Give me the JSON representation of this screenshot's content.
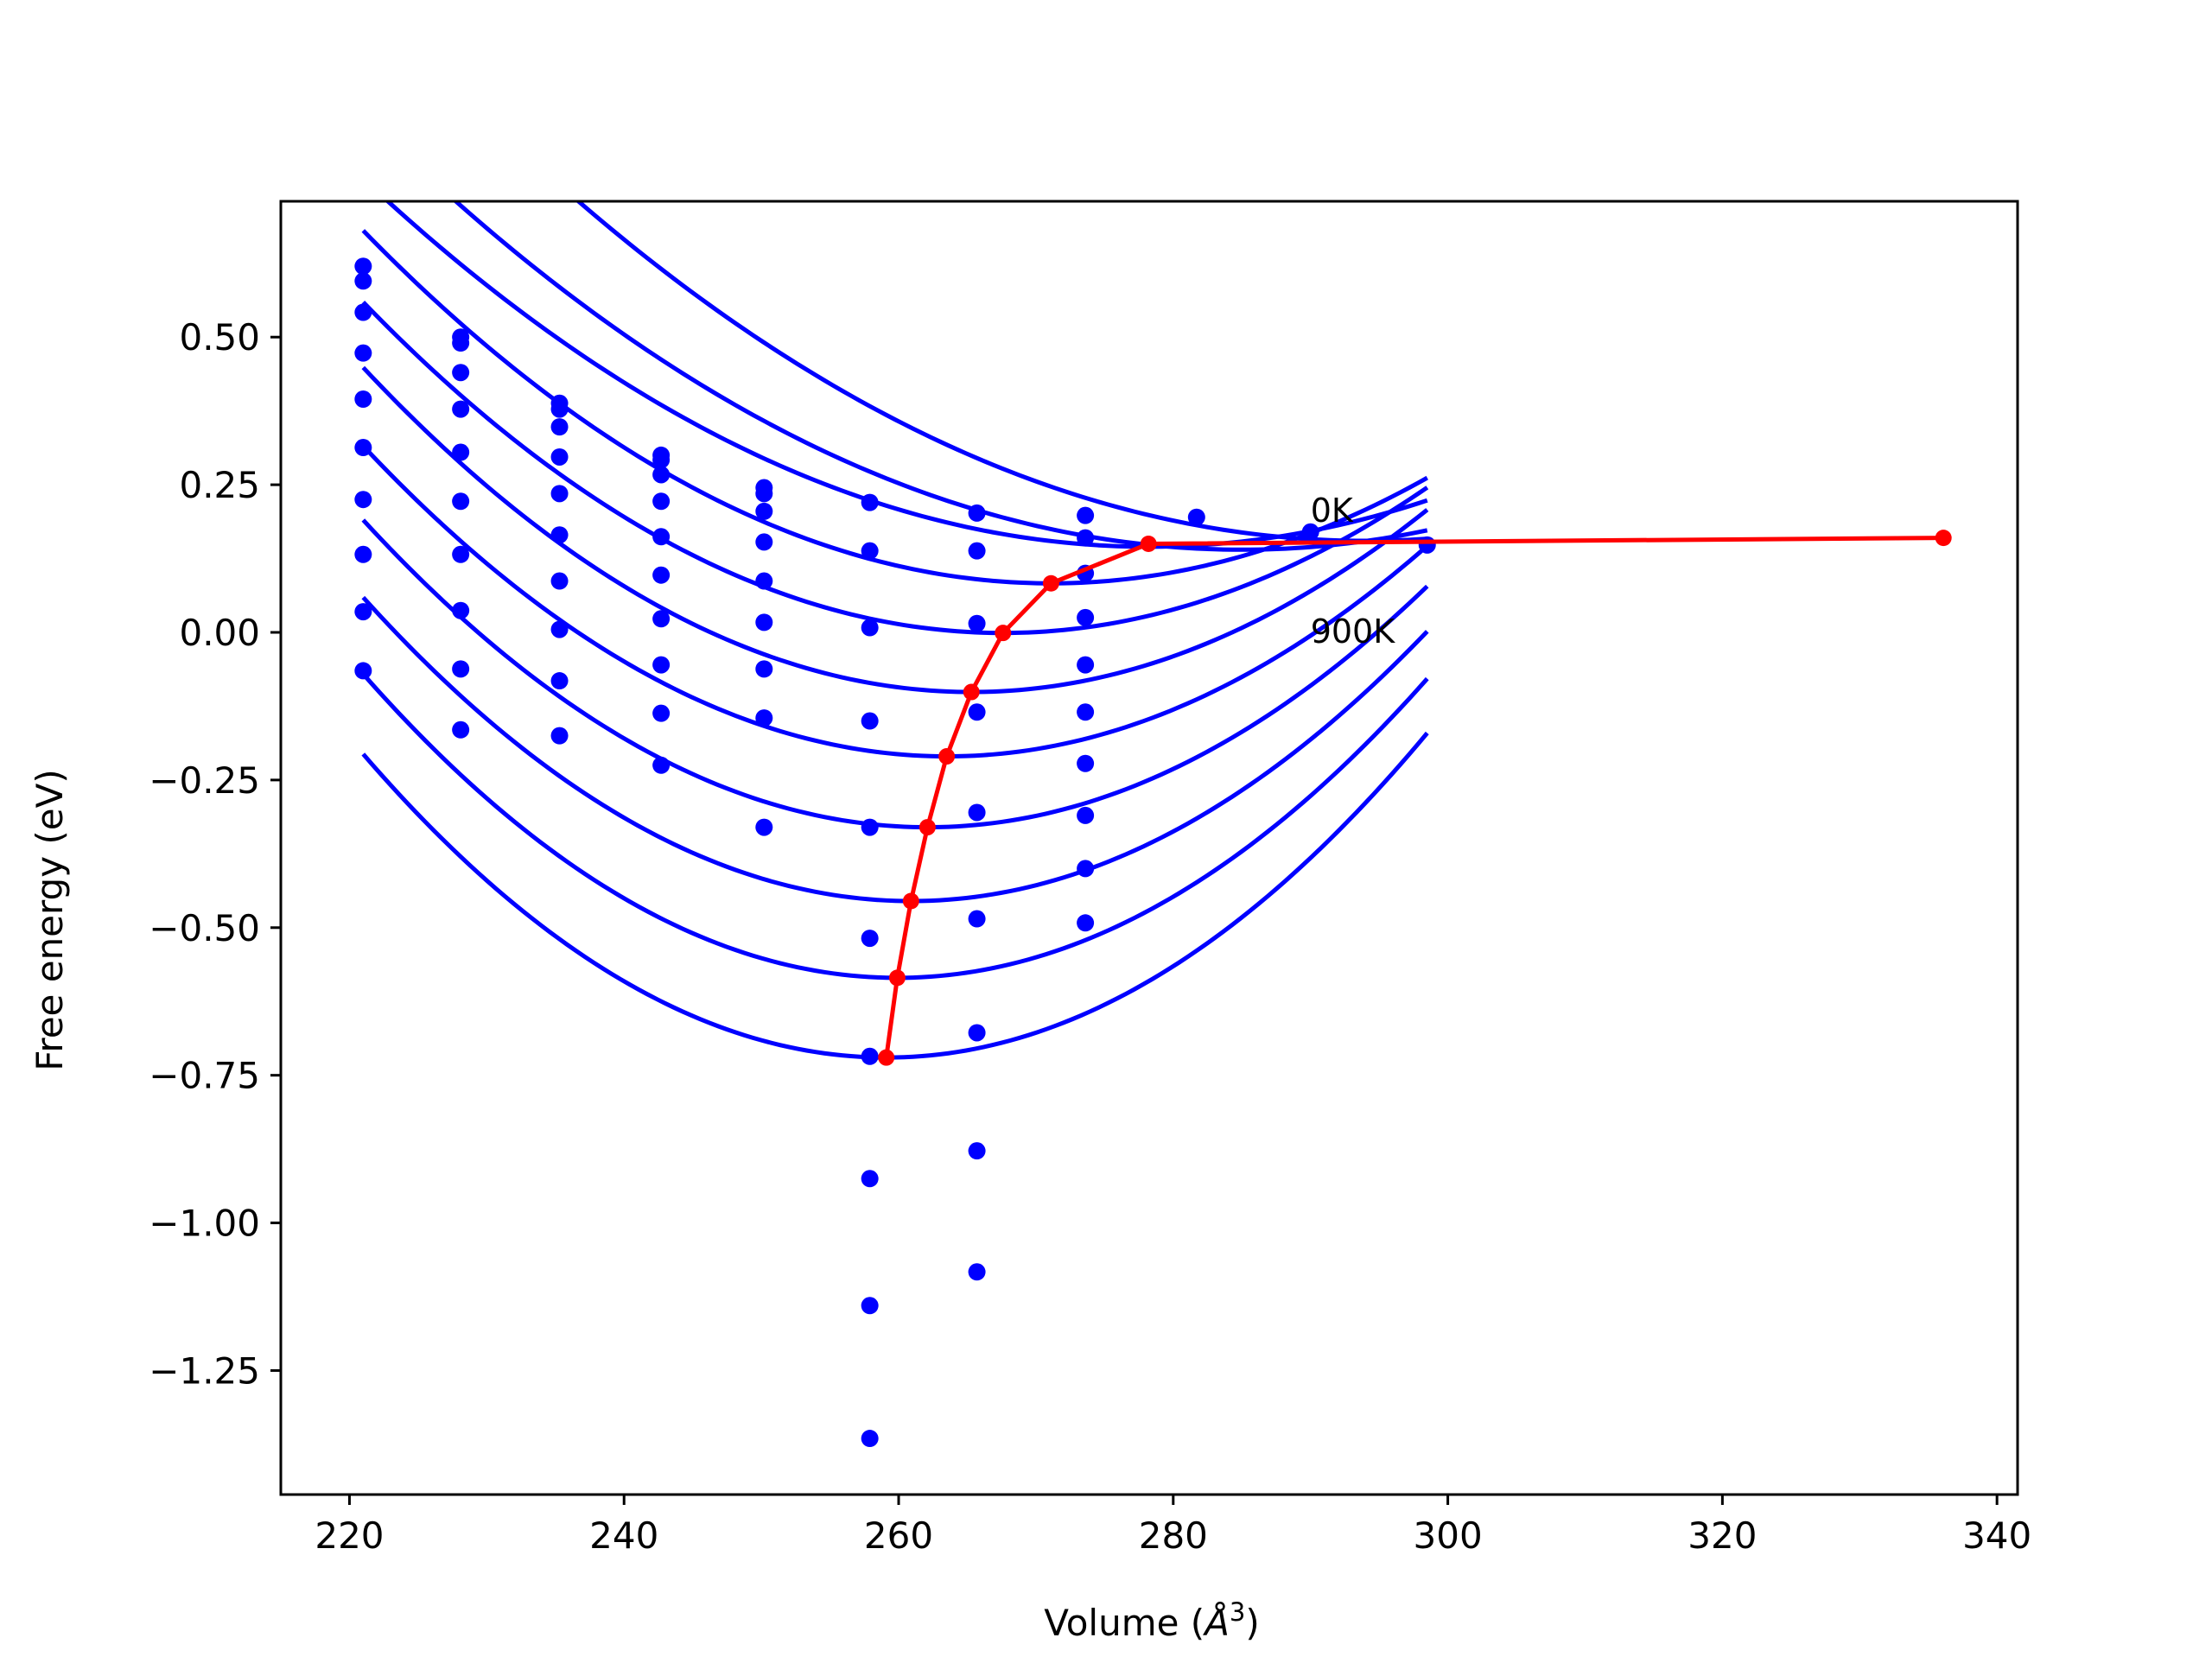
{
  "chart_data": {
    "type": "scatter",
    "title": "",
    "xlabel": "Volume (",
    "xlabel_symbol": "Å",
    "xlabel_exponent": "3",
    "xlabel_close": ")",
    "ylabel": "Free energy (eV)",
    "xlim": [
      215,
      341.5
    ],
    "ylim": [
      -1.46,
      0.73
    ],
    "xticks": [
      220,
      240,
      260,
      280,
      300,
      320,
      340
    ],
    "xtick_labels": [
      "220",
      "240",
      "260",
      "280",
      "300",
      "320",
      "340"
    ],
    "yticks": [
      0.5,
      0.25,
      0.0,
      -0.25,
      -0.5,
      -0.75,
      -1.0,
      -1.25
    ],
    "ytick_labels": [
      "0.50",
      "0.25",
      "0.00",
      "−0.25",
      "−0.50",
      "−0.75",
      "−1.00",
      "−1.25"
    ],
    "grid": false,
    "legend": "none",
    "annotations": [
      {
        "text": "0K",
        "x": 290,
        "y": 0.205
      },
      {
        "text": "900K",
        "x": 290,
        "y": 0.0
      }
    ],
    "colors": {
      "fits": "#0000ff",
      "points": "#0000ff",
      "minimum_path": "#ff0000"
    },
    "fit_curves": {
      "x_range": [
        221,
        298.5
      ],
      "curves": [
        {
          "V0": 294.0,
          "E0": 0.155,
          "B": 0.000175
        },
        {
          "V0": 285.0,
          "E0": 0.14,
          "B": 0.00018
        },
        {
          "V0": 278.2,
          "E0": 0.145,
          "B": 0.0001906
        },
        {
          "V0": 271.1,
          "E0": 0.083,
          "B": 0.000238
        },
        {
          "V0": 267.6,
          "E0": -0.001,
          "B": 0.000258
        },
        {
          "V0": 265.3,
          "E0": -0.101,
          "B": 0.00028
        },
        {
          "V0": 263.5,
          "E0": -0.21,
          "B": 0.000291
        },
        {
          "V0": 262.1,
          "E0": -0.33,
          "B": 0.000308
        },
        {
          "V0": 260.9,
          "E0": -0.455,
          "B": 0.000323
        },
        {
          "V0": 259.9,
          "E0": -0.585,
          "B": 0.00034
        },
        {
          "V0": 259.1,
          "E0": -0.72,
          "B": 0.000354
        }
      ]
    },
    "scatter_points": {
      "x": [
        221.0,
        221.0,
        221.0,
        221.0,
        221.0,
        221.0,
        221.0,
        221.0,
        221.0,
        221.0,
        228.1,
        228.1,
        228.1,
        228.1,
        228.1,
        228.1,
        228.1,
        228.1,
        228.1,
        228.1,
        235.3,
        235.3,
        235.3,
        235.3,
        235.3,
        235.3,
        235.3,
        235.3,
        235.3,
        235.3,
        242.7,
        242.7,
        242.7,
        242.7,
        242.7,
        242.7,
        242.7,
        242.7,
        242.7,
        242.7,
        250.2,
        250.2,
        250.2,
        250.2,
        250.2,
        250.2,
        250.2,
        250.2,
        250.2,
        257.9,
        257.9,
        257.9,
        257.9,
        257.9,
        257.9,
        257.9,
        257.9,
        257.9,
        257.9,
        265.7,
        265.7,
        265.7,
        265.7,
        265.7,
        265.7,
        265.7,
        265.7,
        265.7,
        273.6,
        273.6,
        273.6,
        273.6,
        273.6,
        273.6,
        273.6,
        273.6,
        273.6,
        273.6,
        281.7,
        290.0,
        298.5
      ],
      "y": [
        0.62,
        0.595,
        0.542,
        0.473,
        0.395,
        0.313,
        0.225,
        0.132,
        0.035,
        -0.065,
        0.5,
        0.49,
        0.44,
        0.378,
        0.305,
        0.222,
        0.132,
        0.037,
        -0.062,
        -0.165,
        0.388,
        0.378,
        0.348,
        0.297,
        0.235,
        0.165,
        0.087,
        0.005,
        -0.082,
        -0.175,
        0.3,
        0.292,
        0.267,
        0.222,
        0.162,
        0.097,
        0.023,
        -0.055,
        -0.137,
        -0.225,
        0.245,
        0.235,
        0.205,
        0.153,
        0.087,
        0.017,
        -0.062,
        -0.145,
        -0.33,
        0.22,
        0.138,
        0.008,
        -0.15,
        -0.33,
        -0.518,
        -0.718,
        -0.925,
        -1.14,
        -1.365,
        0.202,
        0.138,
        0.015,
        -0.135,
        -0.305,
        -0.485,
        -0.678,
        -0.878,
        -1.083,
        0.198,
        0.16,
        0.1,
        0.025,
        -0.055,
        -0.135,
        -0.222,
        -0.31,
        -0.4,
        -0.492,
        0.195,
        0.17,
        0.148
      ]
    },
    "series": [
      {
        "x": [
          259.1,
          259.9,
          260.9,
          262.1,
          263.5,
          265.3,
          267.6,
          271.1,
          278.2,
          336.1
        ],
        "values": [
          -0.72,
          -0.585,
          -0.455,
          -0.33,
          -0.21,
          -0.101,
          -0.001,
          0.083,
          0.15,
          0.16
        ]
      }
    ]
  }
}
